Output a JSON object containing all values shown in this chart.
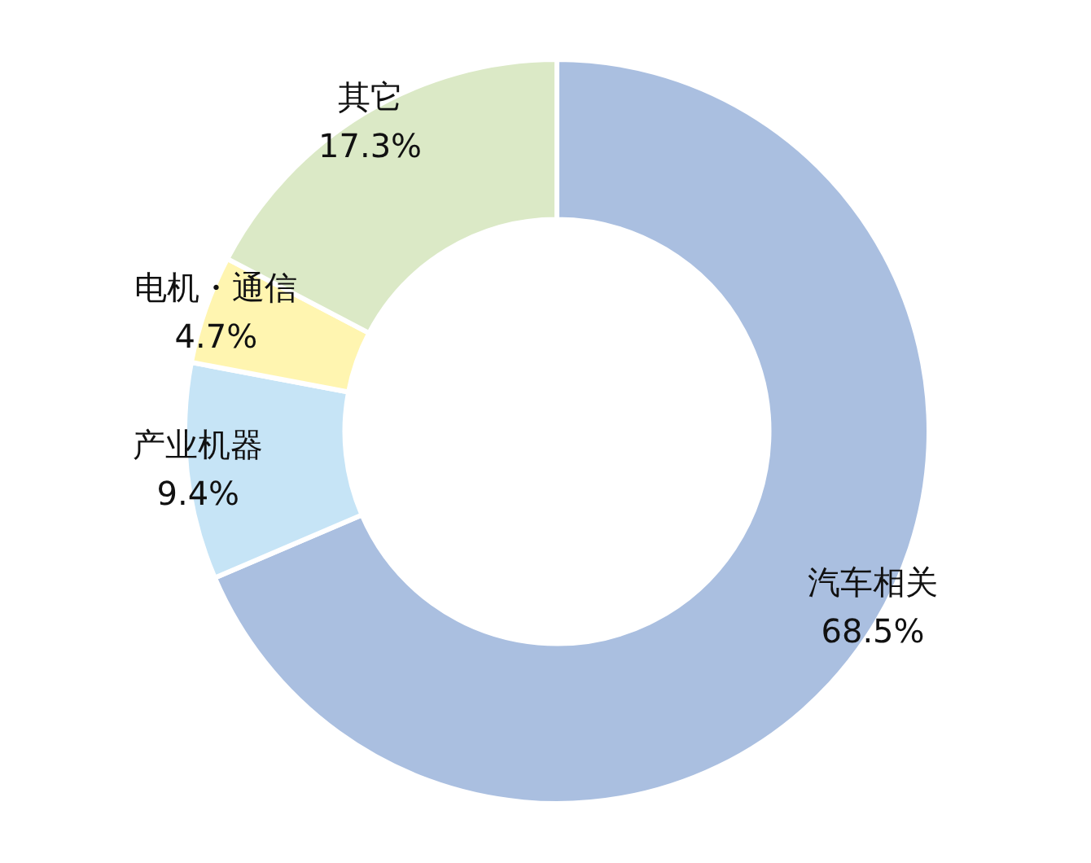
{
  "chart_data": {
    "type": "donut",
    "categories": [
      "汽车相关",
      "产业机器",
      "电机・通信",
      "其它"
    ],
    "values": [
      68.5,
      9.4,
      4.7,
      17.3
    ],
    "colors": [
      "#aabfe0",
      "#c6e4f6",
      "#fff5b0",
      "#dbe9c6"
    ],
    "value_labels": [
      "68.5%",
      "9.4%",
      "4.7%",
      "17.3%"
    ],
    "legend": false
  }
}
